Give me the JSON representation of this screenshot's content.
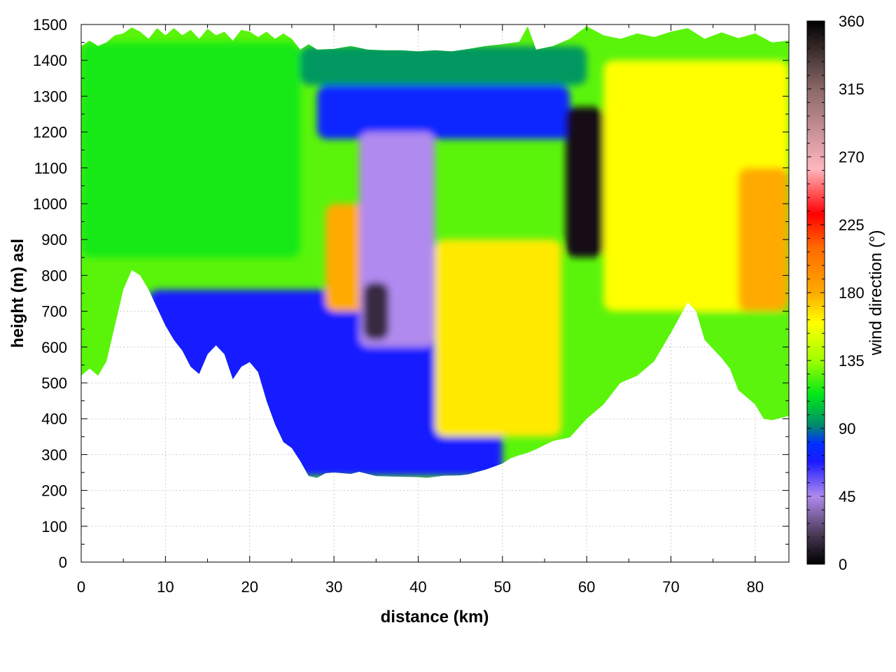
{
  "chart_data": {
    "type": "heatmap",
    "title": "",
    "xlabel": "distance (km)",
    "ylabel": "height (m) asl",
    "xlim": [
      0,
      84
    ],
    "ylim": [
      0,
      1500
    ],
    "x_ticks": [
      0,
      10,
      20,
      30,
      40,
      50,
      60,
      70,
      80
    ],
    "y_ticks": [
      0,
      100,
      200,
      300,
      400,
      500,
      600,
      700,
      800,
      900,
      1000,
      1100,
      1200,
      1300,
      1400,
      1500
    ],
    "grid": true,
    "colorbar": {
      "label": "wind direction (°)",
      "range": [
        0,
        360
      ],
      "ticks": [
        0,
        45,
        90,
        135,
        180,
        225,
        270,
        315,
        360
      ],
      "palette": [
        {
          "value": 0,
          "color": "#000000"
        },
        {
          "value": 20,
          "color": "#4a3a55"
        },
        {
          "value": 45,
          "color": "#b08aee"
        },
        {
          "value": 68,
          "color": "#1a1aff"
        },
        {
          "value": 80,
          "color": "#0030ff"
        },
        {
          "value": 92,
          "color": "#008a6e"
        },
        {
          "value": 112,
          "color": "#00e619"
        },
        {
          "value": 135,
          "color": "#a0ff00"
        },
        {
          "value": 160,
          "color": "#ffff00"
        },
        {
          "value": 180,
          "color": "#ffaa00"
        },
        {
          "value": 210,
          "color": "#ff6a00"
        },
        {
          "value": 232,
          "color": "#ff0000"
        },
        {
          "value": 262,
          "color": "#ffb6bf"
        },
        {
          "value": 315,
          "color": "#8a6868"
        },
        {
          "value": 360,
          "color": "#000000"
        }
      ]
    },
    "terrain_height": [
      {
        "x": 0,
        "y": 520
      },
      {
        "x": 1,
        "y": 540
      },
      {
        "x": 2,
        "y": 520
      },
      {
        "x": 3,
        "y": 560
      },
      {
        "x": 4,
        "y": 660
      },
      {
        "x": 5,
        "y": 760
      },
      {
        "x": 6,
        "y": 815
      },
      {
        "x": 7,
        "y": 800
      },
      {
        "x": 8,
        "y": 760
      },
      {
        "x": 9,
        "y": 710
      },
      {
        "x": 10,
        "y": 660
      },
      {
        "x": 11,
        "y": 620
      },
      {
        "x": 12,
        "y": 590
      },
      {
        "x": 13,
        "y": 545
      },
      {
        "x": 14,
        "y": 525
      },
      {
        "x": 15,
        "y": 580
      },
      {
        "x": 16,
        "y": 605
      },
      {
        "x": 17,
        "y": 580
      },
      {
        "x": 18,
        "y": 510
      },
      {
        "x": 19,
        "y": 545
      },
      {
        "x": 20,
        "y": 558
      },
      {
        "x": 21,
        "y": 530
      },
      {
        "x": 22,
        "y": 450
      },
      {
        "x": 23,
        "y": 385
      },
      {
        "x": 24,
        "y": 335
      },
      {
        "x": 25,
        "y": 318
      },
      {
        "x": 26,
        "y": 282
      },
      {
        "x": 27,
        "y": 240
      },
      {
        "x": 28,
        "y": 235
      },
      {
        "x": 29,
        "y": 248
      },
      {
        "x": 30,
        "y": 250
      },
      {
        "x": 32,
        "y": 246
      },
      {
        "x": 33,
        "y": 252
      },
      {
        "x": 35,
        "y": 240
      },
      {
        "x": 38,
        "y": 238
      },
      {
        "x": 40,
        "y": 237
      },
      {
        "x": 41,
        "y": 235
      },
      {
        "x": 43,
        "y": 241
      },
      {
        "x": 45,
        "y": 242
      },
      {
        "x": 46,
        "y": 245
      },
      {
        "x": 48,
        "y": 258
      },
      {
        "x": 50,
        "y": 275
      },
      {
        "x": 51,
        "y": 290
      },
      {
        "x": 52,
        "y": 298
      },
      {
        "x": 53,
        "y": 305
      },
      {
        "x": 54,
        "y": 315
      },
      {
        "x": 56,
        "y": 338
      },
      {
        "x": 58,
        "y": 348
      },
      {
        "x": 60,
        "y": 400
      },
      {
        "x": 62,
        "y": 440
      },
      {
        "x": 64,
        "y": 500
      },
      {
        "x": 66,
        "y": 520
      },
      {
        "x": 68,
        "y": 560
      },
      {
        "x": 70,
        "y": 640
      },
      {
        "x": 72,
        "y": 725
      },
      {
        "x": 73,
        "y": 700
      },
      {
        "x": 74,
        "y": 620
      },
      {
        "x": 76,
        "y": 570
      },
      {
        "x": 77,
        "y": 540
      },
      {
        "x": 78,
        "y": 480
      },
      {
        "x": 80,
        "y": 440
      },
      {
        "x": 81,
        "y": 400
      },
      {
        "x": 82,
        "y": 396
      },
      {
        "x": 83,
        "y": 402
      },
      {
        "x": 84,
        "y": 408
      }
    ],
    "top_boundary": [
      {
        "x": 0,
        "y": 1440
      },
      {
        "x": 1,
        "y": 1455
      },
      {
        "x": 2,
        "y": 1440
      },
      {
        "x": 3,
        "y": 1450
      },
      {
        "x": 4,
        "y": 1470
      },
      {
        "x": 5,
        "y": 1475
      },
      {
        "x": 6,
        "y": 1492
      },
      {
        "x": 7,
        "y": 1480
      },
      {
        "x": 8,
        "y": 1460
      },
      {
        "x": 9,
        "y": 1490
      },
      {
        "x": 10,
        "y": 1470
      },
      {
        "x": 11,
        "y": 1490
      },
      {
        "x": 12,
        "y": 1470
      },
      {
        "x": 13,
        "y": 1485
      },
      {
        "x": 14,
        "y": 1460
      },
      {
        "x": 15,
        "y": 1488
      },
      {
        "x": 16,
        "y": 1470
      },
      {
        "x": 17,
        "y": 1480
      },
      {
        "x": 18,
        "y": 1455
      },
      {
        "x": 19,
        "y": 1485
      },
      {
        "x": 20,
        "y": 1480
      },
      {
        "x": 21,
        "y": 1465
      },
      {
        "x": 22,
        "y": 1480
      },
      {
        "x": 23,
        "y": 1460
      },
      {
        "x": 24,
        "y": 1475
      },
      {
        "x": 25,
        "y": 1460
      },
      {
        "x": 26,
        "y": 1430
      },
      {
        "x": 27,
        "y": 1445
      },
      {
        "x": 28,
        "y": 1430
      },
      {
        "x": 30,
        "y": 1432
      },
      {
        "x": 32,
        "y": 1440
      },
      {
        "x": 34,
        "y": 1430
      },
      {
        "x": 36,
        "y": 1428
      },
      {
        "x": 38,
        "y": 1428
      },
      {
        "x": 40,
        "y": 1425
      },
      {
        "x": 42,
        "y": 1428
      },
      {
        "x": 44,
        "y": 1425
      },
      {
        "x": 46,
        "y": 1432
      },
      {
        "x": 48,
        "y": 1440
      },
      {
        "x": 50,
        "y": 1445
      },
      {
        "x": 52,
        "y": 1452
      },
      {
        "x": 53,
        "y": 1495
      },
      {
        "x": 54,
        "y": 1430
      },
      {
        "x": 56,
        "y": 1440
      },
      {
        "x": 58,
        "y": 1460
      },
      {
        "x": 60,
        "y": 1495
      },
      {
        "x": 62,
        "y": 1470
      },
      {
        "x": 64,
        "y": 1460
      },
      {
        "x": 66,
        "y": 1475
      },
      {
        "x": 68,
        "y": 1465
      },
      {
        "x": 70,
        "y": 1480
      },
      {
        "x": 72,
        "y": 1490
      },
      {
        "x": 74,
        "y": 1460
      },
      {
        "x": 76,
        "y": 1478
      },
      {
        "x": 78,
        "y": 1462
      },
      {
        "x": 80,
        "y": 1475
      },
      {
        "x": 82,
        "y": 1450
      },
      {
        "x": 84,
        "y": 1455
      }
    ],
    "regions": [
      {
        "name": "upper-left-green",
        "x_range": [
          0,
          26
        ],
        "y_range": [
          850,
          1450
        ],
        "direction": 115
      },
      {
        "name": "upper-teal-band",
        "x_range": [
          26,
          60
        ],
        "y_range": [
          1330,
          1440
        ],
        "direction": 95
      },
      {
        "name": "upper-blue-band",
        "x_range": [
          28,
          58
        ],
        "y_range": [
          1180,
          1330
        ],
        "direction": 75
      },
      {
        "name": "lower-left-blue",
        "x_range": [
          8,
          50
        ],
        "y_range": [
          240,
          760
        ],
        "direction": 70
      },
      {
        "name": "central-orange-core",
        "x_range": [
          29,
          34
        ],
        "y_range": [
          700,
          1000
        ],
        "direction": 180
      },
      {
        "name": "central-purple-column",
        "x_range": [
          33,
          42
        ],
        "y_range": [
          600,
          1200
        ],
        "direction": 45
      },
      {
        "name": "central-dark-core",
        "x_range": [
          33.5,
          36.5
        ],
        "y_range": [
          620,
          780
        ],
        "direction": 15
      },
      {
        "name": "center-yellow",
        "x_range": [
          42,
          57
        ],
        "y_range": [
          350,
          900
        ],
        "direction": 165
      },
      {
        "name": "upper-right-dark-core",
        "x_range": [
          57.5,
          62
        ],
        "y_range": [
          850,
          1270
        ],
        "direction": 5
      },
      {
        "name": "right-yellow",
        "x_range": [
          62,
          84
        ],
        "y_range": [
          700,
          1400
        ],
        "direction": 160
      },
      {
        "name": "far-right-orange",
        "x_range": [
          78,
          84
        ],
        "y_range": [
          700,
          1100
        ],
        "direction": 180
      },
      {
        "name": "lower-right-green",
        "x_range": [
          72,
          84
        ],
        "y_range": [
          400,
          700
        ],
        "direction": 125
      }
    ]
  }
}
